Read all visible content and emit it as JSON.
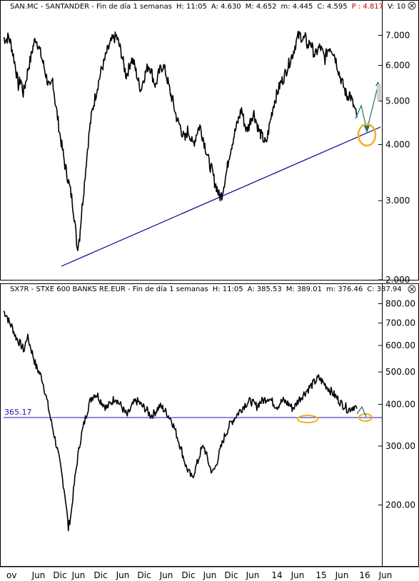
{
  "chart_data": [
    {
      "type": "line",
      "title": "SAN.MC - SANTANDER - Fin de día 1 semanas",
      "stats": [
        {
          "label": "H:",
          "value": "11:05"
        },
        {
          "label": "A:",
          "value": "4.630"
        },
        {
          "label": "M:",
          "value": "4.652"
        },
        {
          "label": "m:",
          "value": "4.445"
        },
        {
          "label": "C:",
          "value": "4.595"
        },
        {
          "label": "P :",
          "value": "4.817",
          "highlight": true
        },
        {
          "label": "V:",
          "value": "10"
        }
      ],
      "y_scale": "log",
      "ylim": [
        2.0,
        7.3
      ],
      "y_ticks": [
        "7.000",
        "6.000",
        "5.000",
        "4.000",
        "3.000",
        "2.000"
      ],
      "y_tick_values": [
        7.0,
        6.0,
        5.0,
        4.0,
        3.0,
        2.0
      ],
      "grid": false,
      "series": [
        {
          "values": [
            6.9,
            6.85,
            6.95,
            6.7,
            6.3,
            5.9,
            5.4,
            5.6,
            5.2,
            5.5,
            5.9,
            6.2,
            6.6,
            6.9,
            6.7,
            6.4,
            6.1,
            5.8,
            5.5,
            5.3,
            5.6,
            5.0,
            4.6,
            4.2,
            3.9,
            3.6,
            3.4,
            3.2,
            3.0,
            2.7,
            2.35,
            2.5,
            2.9,
            3.3,
            3.8,
            4.3,
            4.7,
            5.0,
            5.3,
            5.6,
            5.9,
            6.1,
            6.4,
            6.6,
            6.8,
            6.9,
            6.95,
            6.7,
            6.4,
            6.0,
            5.7,
            5.9,
            6.2,
            6.1,
            5.8,
            5.5,
            5.3,
            5.6,
            5.8,
            6.0,
            5.9,
            5.6,
            5.4,
            5.7,
            5.9,
            6.0,
            5.8,
            5.5,
            5.2,
            5.0,
            4.7,
            4.5,
            4.4,
            4.2,
            4.1,
            4.3,
            4.2,
            4.0,
            4.1,
            4.3,
            4.4,
            4.2,
            4.0,
            3.8,
            3.6,
            3.5,
            3.3,
            3.2,
            3.05,
            3.1,
            3.3,
            3.5,
            3.8,
            4.0,
            4.2,
            4.4,
            4.6,
            4.8,
            4.5,
            4.3,
            4.4,
            4.6,
            4.7,
            4.5,
            4.3,
            4.2,
            4.1,
            4.0,
            4.3,
            4.6,
            4.9,
            5.1,
            5.3,
            5.5,
            5.6,
            5.8,
            6.0,
            6.2,
            6.4,
            6.7,
            6.95,
            7.0,
            6.85,
            6.9,
            6.6,
            6.8,
            6.5,
            6.3,
            6.5,
            6.6,
            6.4,
            6.2,
            6.5,
            6.6,
            6.5,
            6.3,
            6.0,
            5.7,
            5.5,
            5.3,
            5.1,
            5.2,
            5.0,
            4.8,
            4.6
          ],
          "color": "#000000"
        }
      ],
      "annotations": [
        {
          "kind": "trendline",
          "from": [
            2.35
          ],
          "to": [
            4.15
          ],
          "color": "#00008b"
        },
        {
          "kind": "projection-arrows",
          "color": "#1f6f6f"
        },
        {
          "kind": "highlight-ellipse",
          "color": "#f0b020"
        }
      ]
    },
    {
      "type": "line",
      "title": "SX7R - STXE 600 BANKS RE.EUR - Fin de día 1 semanas",
      "stats": [
        {
          "label": "H:",
          "value": "11:05"
        },
        {
          "label": "A:",
          "value": "385.53"
        },
        {
          "label": "M:",
          "value": "389.01"
        },
        {
          "label": "m:",
          "value": "376.46"
        },
        {
          "label": "C:",
          "value": "387.94"
        }
      ],
      "y_scale": "log",
      "ylim": [
        140,
        830
      ],
      "y_ticks": [
        "800.00",
        "700.00",
        "600.00",
        "500.00",
        "400.00",
        "300.00",
        "200.00"
      ],
      "y_tick_values": [
        800,
        700,
        600,
        500,
        400,
        300,
        200
      ],
      "reference_line": {
        "value": 365.17,
        "label": "365.17",
        "color": "#1a1ab0"
      },
      "grid": false,
      "series": [
        {
          "values": [
            760,
            740,
            700,
            680,
            640,
            620,
            600,
            580,
            640,
            600,
            560,
            520,
            500,
            480,
            440,
            400,
            360,
            330,
            300,
            270,
            240,
            210,
            170,
            190,
            230,
            270,
            310,
            340,
            370,
            400,
            420,
            430,
            425,
            410,
            400,
            390,
            400,
            410,
            420,
            405,
            395,
            380,
            370,
            385,
            400,
            410,
            405,
            395,
            390,
            380,
            370,
            375,
            385,
            395,
            390,
            380,
            370,
            360,
            340,
            320,
            300,
            280,
            260,
            250,
            240,
            255,
            270,
            290,
            300,
            280,
            260,
            250,
            260,
            280,
            300,
            320,
            335,
            350,
            360,
            370,
            380,
            390,
            400,
            405,
            410,
            400,
            395,
            405,
            410,
            415,
            420,
            410,
            400,
            395,
            405,
            410,
            405,
            400,
            390,
            395,
            410,
            420,
            430,
            440,
            450,
            460,
            470,
            480,
            470,
            460,
            450,
            440,
            430,
            420,
            410,
            400,
            395,
            385,
            390,
            395,
            388
          ],
          "color": "#000000"
        }
      ],
      "annotations": [
        {
          "kind": "projection-arrows",
          "color": "#1f6f6f"
        },
        {
          "kind": "highlight-ellipse",
          "color": "#f0b020"
        },
        {
          "kind": "highlight-ellipse",
          "color": "#f0b020"
        }
      ]
    }
  ],
  "x_axis": {
    "tick_labels": [
      "ov",
      "Jun",
      "Dic",
      "Jun",
      "Dic",
      "Jun",
      "Dic",
      "Jun",
      "Dic",
      "Jun",
      "Dic",
      "Jun",
      "14",
      "Jun",
      "15",
      "Jun",
      "16",
      "Jun"
    ]
  },
  "colors": {
    "price": "#000000",
    "trendline": "#00008b",
    "reference": "#1a1ab0",
    "projection": "#1f6f6f",
    "highlight": "#f0b020",
    "header_bg": "#ffffff"
  },
  "icons": {
    "top_close": "close-icon",
    "bottom_close": "close-icon"
  }
}
